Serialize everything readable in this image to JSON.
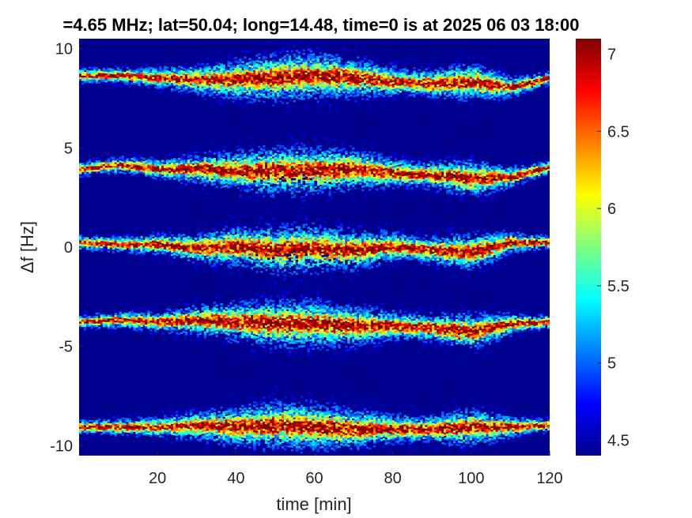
{
  "chart_data": {
    "type": "heatmap",
    "title": "=4.65 MHz;  lat=50.04; long=14.48, time=0 is at 2025 06 03 18:00",
    "xlabel": "time [min]",
    "ylabel": "Δf [Hz]",
    "xlim": [
      0,
      120
    ],
    "ylim": [
      -10.5,
      10.5
    ],
    "xticks": [
      20,
      40,
      60,
      80,
      100,
      120
    ],
    "xtick_labels": [
      "20",
      "40",
      "60",
      "80",
      "100",
      "120"
    ],
    "yticks": [
      10,
      5,
      0,
      -5,
      -10
    ],
    "ytick_labels": [
      "10",
      "5",
      "0",
      "-5",
      "-10"
    ],
    "colorbar": {
      "range": [
        4.4,
        7.1
      ],
      "ticks": [
        7,
        6.5,
        6,
        5.5,
        5,
        4.5
      ],
      "tick_labels": [
        "7",
        "6.5",
        "6",
        "5.5",
        "5",
        "4.5"
      ],
      "colormap": "jet"
    },
    "background_color": "#00008f",
    "bands": [
      {
        "center_hz": 8.5,
        "trace": [
          [
            0,
            8.6
          ],
          [
            10,
            8.6
          ],
          [
            20,
            8.5
          ],
          [
            30,
            8.4
          ],
          [
            40,
            8.4
          ],
          [
            50,
            8.5
          ],
          [
            60,
            8.6
          ],
          [
            70,
            8.5
          ],
          [
            80,
            8.3
          ],
          [
            90,
            8.2
          ],
          [
            100,
            8.3
          ],
          [
            110,
            8.0
          ],
          [
            120,
            8.5
          ]
        ]
      },
      {
        "center_hz": 3.9,
        "trace": [
          [
            0,
            3.9
          ],
          [
            10,
            4.1
          ],
          [
            20,
            3.9
          ],
          [
            30,
            3.9
          ],
          [
            40,
            3.8
          ],
          [
            50,
            3.8
          ],
          [
            60,
            3.8
          ],
          [
            70,
            3.9
          ],
          [
            80,
            3.7
          ],
          [
            90,
            3.6
          ],
          [
            100,
            3.4
          ],
          [
            110,
            3.5
          ],
          [
            120,
            4.0
          ]
        ]
      },
      {
        "center_hz": 0.2,
        "trace": [
          [
            0,
            0.2
          ],
          [
            10,
            0.1
          ],
          [
            20,
            0.1
          ],
          [
            30,
            -0.1
          ],
          [
            40,
            0.0
          ],
          [
            50,
            -0.2
          ],
          [
            60,
            -0.1
          ],
          [
            70,
            -0.2
          ],
          [
            80,
            0.0
          ],
          [
            90,
            -0.2
          ],
          [
            100,
            -0.3
          ],
          [
            110,
            0.2
          ],
          [
            120,
            0.2
          ]
        ]
      },
      {
        "center_hz": -3.8,
        "trace": [
          [
            0,
            -3.8
          ],
          [
            10,
            -3.7
          ],
          [
            20,
            -3.8
          ],
          [
            30,
            -3.7
          ],
          [
            40,
            -3.8
          ],
          [
            50,
            -3.9
          ],
          [
            60,
            -3.9
          ],
          [
            70,
            -4.0
          ],
          [
            80,
            -4.0
          ],
          [
            90,
            -4.1
          ],
          [
            100,
            -4.3
          ],
          [
            110,
            -3.9
          ],
          [
            120,
            -3.8
          ]
        ]
      },
      {
        "center_hz": -9.1,
        "trace": [
          [
            0,
            -9.1
          ],
          [
            10,
            -9.1
          ],
          [
            20,
            -9.1
          ],
          [
            30,
            -9.0
          ],
          [
            40,
            -9.1
          ],
          [
            50,
            -9.0
          ],
          [
            60,
            -9.1
          ],
          [
            70,
            -9.2
          ],
          [
            80,
            -9.2
          ],
          [
            90,
            -9.2
          ],
          [
            100,
            -9.1
          ],
          [
            110,
            -9.1
          ],
          [
            120,
            -9.0
          ]
        ]
      }
    ]
  }
}
